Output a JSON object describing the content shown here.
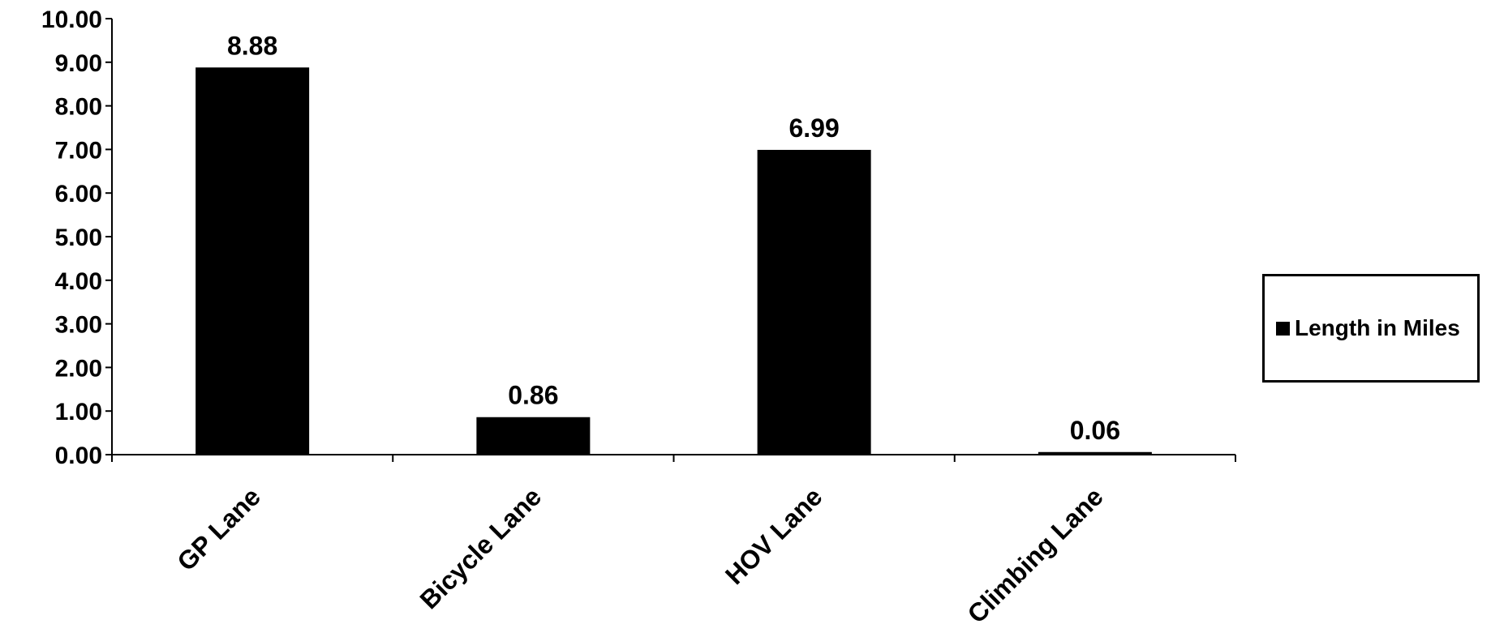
{
  "chart_data": {
    "type": "bar",
    "categories": [
      "GP Lane",
      "Bicycle Lane",
      "HOV Lane",
      "Climbing Lane"
    ],
    "series": [
      {
        "name": "Length in Miles",
        "values": [
          8.88,
          0.86,
          6.99,
          0.06
        ],
        "color": "#000000"
      }
    ],
    "data_labels": [
      "8.88",
      "0.86",
      "6.99",
      "0.06"
    ],
    "y_ticks": [
      "0.00",
      "1.00",
      "2.00",
      "3.00",
      "4.00",
      "5.00",
      "6.00",
      "7.00",
      "8.00",
      "9.00",
      "10.00"
    ],
    "ylim": [
      0,
      10
    ],
    "grid": false,
    "legend_position": "right",
    "title": "",
    "xlabel": "",
    "ylabel": ""
  }
}
